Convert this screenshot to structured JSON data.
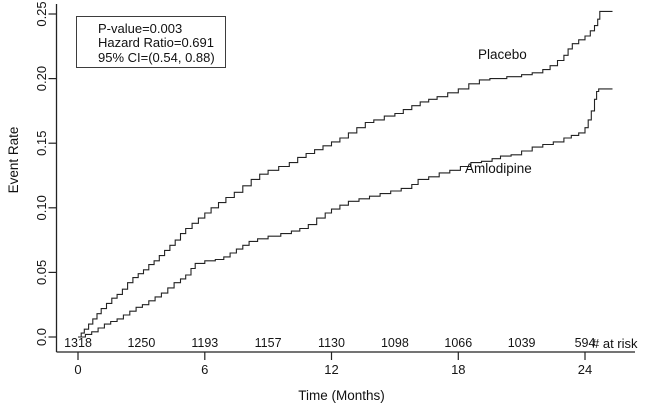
{
  "chart_data": {
    "type": "line",
    "style": "kaplan-meier-cumulative-event-step",
    "title": "",
    "xlabel": "Time (Months)",
    "ylabel": "Event Rate",
    "xlim": [
      0,
      25.5
    ],
    "ylim": [
      0,
      0.25
    ],
    "x_ticks": [
      0,
      6,
      12,
      18,
      24
    ],
    "y_ticks": [
      0,
      0.05,
      0.1,
      0.15,
      0.2,
      0.25
    ],
    "y_tick_labels": [
      "0.0",
      "0.05",
      "0.10",
      "0.15",
      "0.20",
      "0.25"
    ],
    "grid": false,
    "legend_position": "inline-curve-labels",
    "line_color": "#222222",
    "annotation": {
      "lines": [
        "P-value=0.003",
        "Hazard Ratio=0.691",
        "95% CI=(0.54, 0.88)"
      ]
    },
    "series": [
      {
        "name": "Placebo",
        "points": [
          [
            0,
            0
          ],
          [
            0.15,
            0.003
          ],
          [
            0.3,
            0.006
          ],
          [
            0.5,
            0.01
          ],
          [
            0.7,
            0.014
          ],
          [
            0.9,
            0.018
          ],
          [
            1.1,
            0.022
          ],
          [
            1.35,
            0.026
          ],
          [
            1.6,
            0.03
          ],
          [
            1.85,
            0.033
          ],
          [
            2.1,
            0.037
          ],
          [
            2.35,
            0.042
          ],
          [
            2.6,
            0.046
          ],
          [
            2.85,
            0.049
          ],
          [
            3.1,
            0.052
          ],
          [
            3.35,
            0.056
          ],
          [
            3.6,
            0.059
          ],
          [
            3.85,
            0.063
          ],
          [
            4.1,
            0.067
          ],
          [
            4.35,
            0.071
          ],
          [
            4.6,
            0.075
          ],
          [
            4.85,
            0.08
          ],
          [
            5.1,
            0.084
          ],
          [
            5.4,
            0.088
          ],
          [
            5.7,
            0.092
          ],
          [
            6.0,
            0.096
          ],
          [
            6.3,
            0.1
          ],
          [
            6.65,
            0.104
          ],
          [
            7.0,
            0.108
          ],
          [
            7.4,
            0.112
          ],
          [
            7.8,
            0.117
          ],
          [
            8.2,
            0.122
          ],
          [
            8.6,
            0.126
          ],
          [
            9.0,
            0.129
          ],
          [
            9.5,
            0.132
          ],
          [
            10.0,
            0.135
          ],
          [
            10.4,
            0.139
          ],
          [
            10.8,
            0.142
          ],
          [
            11.2,
            0.145
          ],
          [
            11.6,
            0.148
          ],
          [
            12.0,
            0.151
          ],
          [
            12.4,
            0.154
          ],
          [
            12.8,
            0.158
          ],
          [
            13.2,
            0.162
          ],
          [
            13.6,
            0.166
          ],
          [
            14.0,
            0.168
          ],
          [
            14.5,
            0.171
          ],
          [
            15.0,
            0.173
          ],
          [
            15.4,
            0.176
          ],
          [
            15.8,
            0.179
          ],
          [
            16.2,
            0.182
          ],
          [
            16.6,
            0.184
          ],
          [
            17.0,
            0.186
          ],
          [
            17.5,
            0.189
          ],
          [
            18.0,
            0.192
          ],
          [
            18.5,
            0.196
          ],
          [
            19.0,
            0.199
          ],
          [
            19.5,
            0.2
          ],
          [
            20.3,
            0.2015
          ],
          [
            21.0,
            0.203
          ],
          [
            21.5,
            0.2045
          ],
          [
            22.0,
            0.207
          ],
          [
            22.35,
            0.21
          ],
          [
            22.7,
            0.214
          ],
          [
            23.0,
            0.218
          ],
          [
            23.2,
            0.223
          ],
          [
            23.4,
            0.227
          ],
          [
            23.7,
            0.23
          ],
          [
            24.0,
            0.233
          ],
          [
            24.25,
            0.237
          ],
          [
            24.45,
            0.241
          ],
          [
            24.6,
            0.246
          ],
          [
            24.7,
            0.252
          ],
          [
            25.3,
            0.252
          ]
        ]
      },
      {
        "name": "Amlodipine",
        "points": [
          [
            0,
            0
          ],
          [
            0.35,
            0.002
          ],
          [
            0.65,
            0.004
          ],
          [
            0.95,
            0.007
          ],
          [
            1.25,
            0.01
          ],
          [
            1.55,
            0.012
          ],
          [
            1.85,
            0.014
          ],
          [
            2.15,
            0.017
          ],
          [
            2.45,
            0.02
          ],
          [
            2.75,
            0.023
          ],
          [
            3.05,
            0.025
          ],
          [
            3.35,
            0.028
          ],
          [
            3.65,
            0.031
          ],
          [
            3.95,
            0.034
          ],
          [
            4.25,
            0.038
          ],
          [
            4.55,
            0.042
          ],
          [
            4.85,
            0.045
          ],
          [
            5.1,
            0.048
          ],
          [
            5.35,
            0.053
          ],
          [
            5.55,
            0.057
          ],
          [
            6.0,
            0.059
          ],
          [
            6.5,
            0.06
          ],
          [
            6.9,
            0.062
          ],
          [
            7.2,
            0.065
          ],
          [
            7.5,
            0.068
          ],
          [
            7.8,
            0.071
          ],
          [
            8.1,
            0.074
          ],
          [
            8.5,
            0.076
          ],
          [
            9.0,
            0.078
          ],
          [
            9.6,
            0.08
          ],
          [
            10.1,
            0.082
          ],
          [
            10.5,
            0.084
          ],
          [
            10.9,
            0.087
          ],
          [
            11.3,
            0.092
          ],
          [
            11.7,
            0.096
          ],
          [
            12.0,
            0.099
          ],
          [
            12.4,
            0.102
          ],
          [
            12.8,
            0.105
          ],
          [
            13.3,
            0.107
          ],
          [
            13.8,
            0.109
          ],
          [
            14.3,
            0.111
          ],
          [
            14.8,
            0.113
          ],
          [
            15.3,
            0.115
          ],
          [
            15.8,
            0.118
          ],
          [
            16.1,
            0.122
          ],
          [
            16.6,
            0.124
          ],
          [
            17.1,
            0.127
          ],
          [
            17.6,
            0.129
          ],
          [
            18.1,
            0.132
          ],
          [
            18.6,
            0.135
          ],
          [
            19.1,
            0.136
          ],
          [
            19.6,
            0.138
          ],
          [
            20.0,
            0.14
          ],
          [
            20.5,
            0.141
          ],
          [
            21.0,
            0.144
          ],
          [
            21.5,
            0.147
          ],
          [
            22.0,
            0.149
          ],
          [
            22.5,
            0.151
          ],
          [
            23.0,
            0.154
          ],
          [
            23.35,
            0.156
          ],
          [
            23.7,
            0.158
          ],
          [
            24.0,
            0.162
          ],
          [
            24.15,
            0.168
          ],
          [
            24.3,
            0.175
          ],
          [
            24.45,
            0.184
          ],
          [
            24.55,
            0.19
          ],
          [
            24.65,
            0.192
          ],
          [
            25.3,
            0.192
          ]
        ]
      }
    ],
    "at_risk": {
      "label": "# at risk",
      "months": [
        0,
        3,
        6,
        9,
        12,
        15,
        18,
        21,
        24
      ],
      "counts": [
        1318,
        1250,
        1193,
        1157,
        1130,
        1098,
        1066,
        1039,
        594
      ]
    }
  }
}
